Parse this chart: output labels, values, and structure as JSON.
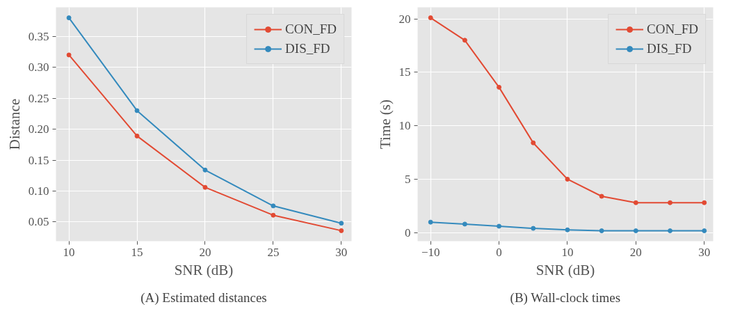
{
  "chart_data": [
    {
      "type": "line",
      "xlabel": "SNR (dB)",
      "ylabel": "Distance",
      "annotations": [
        "(A) Estimated distances"
      ],
      "x": [
        10,
        15,
        20,
        25,
        30
      ],
      "xlim": [
        9.05,
        30.75
      ],
      "xticks": [
        10,
        15,
        20,
        25,
        30
      ],
      "ylim": [
        0.019,
        0.397
      ],
      "yticks": [
        {
          "value": 0.05,
          "label": "0.05"
        },
        {
          "value": 0.1,
          "label": "0.10"
        },
        {
          "value": 0.15,
          "label": "0.15"
        },
        {
          "value": 0.2,
          "label": "0.20"
        },
        {
          "value": 0.25,
          "label": "0.25"
        },
        {
          "value": 0.3,
          "label": "0.30"
        },
        {
          "value": 0.35,
          "label": "0.35"
        }
      ],
      "grid": true,
      "legend": "top right",
      "marker": "circle",
      "line_style": "solid",
      "series": [
        {
          "name": "CON_FD",
          "color": "#e24a33",
          "values": [
            0.32,
            0.189,
            0.106,
            0.061,
            0.036
          ]
        },
        {
          "name": "DIS_FD",
          "color": "#348abd",
          "values": [
            0.38,
            0.23,
            0.134,
            0.076,
            0.048
          ]
        }
      ]
    },
    {
      "type": "line",
      "xlabel": "SNR (dB)",
      "ylabel": "Time (s)",
      "annotations": [
        "(B) Wall-clock times"
      ],
      "x": [
        -10,
        -5,
        0,
        5,
        10,
        15,
        20,
        25,
        30
      ],
      "xlim": [
        -11.9,
        31.3
      ],
      "xticks": [
        {
          "value": -10,
          "label": "−10"
        },
        0,
        10,
        20,
        30
      ],
      "ylim": [
        -0.8,
        21.08
      ],
      "yticks": [
        0,
        5,
        10,
        15,
        20
      ],
      "grid": true,
      "legend": "top right",
      "marker": "circle",
      "line_style": "solid",
      "series": [
        {
          "name": "CON_FD",
          "color": "#e24a33",
          "values": [
            20.1,
            18.0,
            13.6,
            8.4,
            5.0,
            3.4,
            2.8,
            2.8,
            2.8
          ]
        },
        {
          "name": "DIS_FD",
          "color": "#348abd",
          "values": [
            0.98,
            0.8,
            0.6,
            0.4,
            0.26,
            0.17,
            0.17,
            0.17,
            0.17
          ]
        }
      ]
    }
  ]
}
